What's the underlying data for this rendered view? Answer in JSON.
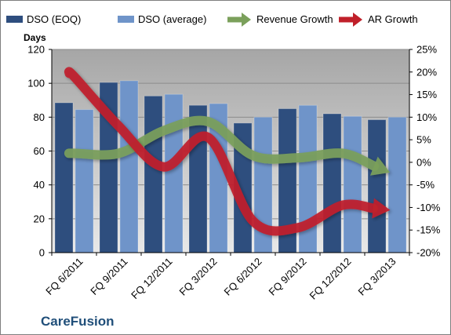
{
  "chart_data": {
    "type": "bar",
    "categories": [
      "FQ 6/2011",
      "FQ 9/2011",
      "FQ 12/2011",
      "FQ 3/2012",
      "FQ 6/2012",
      "FQ 9/2012",
      "FQ 12/2012",
      "FQ 3/2013"
    ],
    "series": [
      {
        "name": "DSO (EOQ)",
        "axis": "left",
        "kind": "bar",
        "color": "#2e4e7e",
        "values": [
          88.5,
          100.5,
          92.5,
          87,
          76.5,
          85,
          82,
          78.5
        ]
      },
      {
        "name": "DSO (average)",
        "axis": "left",
        "kind": "bar",
        "color": "#6f94c9",
        "values": [
          84.5,
          101.5,
          93.5,
          88,
          80,
          87,
          80.5,
          80
        ]
      },
      {
        "name": "Revenue Growth",
        "axis": "right",
        "kind": "arrow-line",
        "color": "#7ba05b",
        "values": [
          2,
          2,
          7,
          9,
          1.5,
          1,
          2,
          -2
        ]
      },
      {
        "name": "AR Growth",
        "axis": "right",
        "kind": "arrow-line",
        "color": "#c0202a",
        "values": [
          19,
          8,
          -1,
          5.5,
          -13,
          -14.5,
          -9.5,
          -10.5
        ]
      }
    ],
    "ylabel": "Days",
    "ylim": [
      0,
      120
    ],
    "yticks": [
      "0",
      "20",
      "40",
      "60",
      "80",
      "100",
      "120"
    ],
    "y2lim": [
      -20,
      25
    ],
    "y2ticks": [
      "-20%",
      "-15%",
      "-10%",
      "-5%",
      "0%",
      "5%",
      "10%",
      "15%",
      "20%",
      "25%"
    ],
    "grid": true,
    "legend_position": "top",
    "plot_background": "#c0c0c0",
    "watermark": "CareFusion"
  }
}
